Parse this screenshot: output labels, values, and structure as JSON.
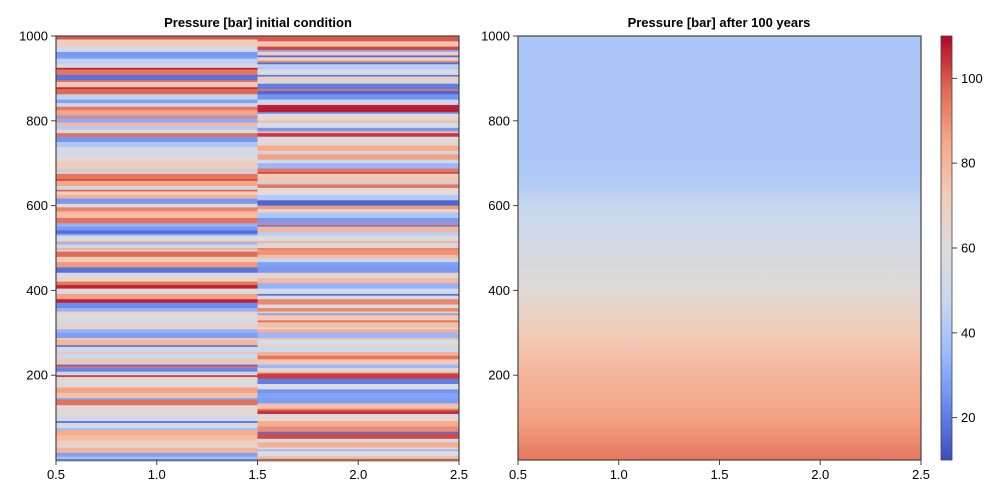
{
  "chart_data": [
    {
      "type": "heatmap",
      "title": "Pressure [bar] initial condition",
      "xlim": [
        0.5,
        2.5
      ],
      "ylim": [
        0,
        1000
      ],
      "x_ticks": [
        "0.5",
        "1.0",
        "1.5",
        "2.0",
        "2.5"
      ],
      "y_ticks": [
        "200",
        "400",
        "600",
        "800",
        "1000"
      ],
      "columns": [
        {
          "x_range": [
            0.5,
            1.5
          ],
          "pattern": "random horizontal layers, ~1–2 m thick"
        },
        {
          "x_range": [
            1.5,
            2.5
          ],
          "pattern": "random horizontal layers, ~1–2 m thick"
        }
      ],
      "value_range": [
        10,
        110
      ],
      "colormap": "coolwarm"
    },
    {
      "type": "heatmap",
      "title": "Pressure [bar] after 100 years",
      "xlim": [
        0.5,
        2.5
      ],
      "ylim": [
        0,
        1000
      ],
      "x_ticks": [
        "0.5",
        "1.0",
        "1.5",
        "2.0",
        "2.5"
      ],
      "y_ticks": [
        "200",
        "400",
        "600",
        "800",
        "1000"
      ],
      "vertical_profile": [
        {
          "depth": 0,
          "value": 95
        },
        {
          "depth": 100,
          "value": 86
        },
        {
          "depth": 200,
          "value": 80
        },
        {
          "depth": 300,
          "value": 72
        },
        {
          "depth": 400,
          "value": 62
        },
        {
          "depth": 500,
          "value": 55
        },
        {
          "depth": 600,
          "value": 47
        },
        {
          "depth": 650,
          "value": 42
        },
        {
          "depth": 700,
          "value": 40
        },
        {
          "depth": 1000,
          "value": 40
        }
      ],
      "colormap": "coolwarm"
    }
  ],
  "colorbar": {
    "range": [
      10,
      110
    ],
    "ticks": [
      "20",
      "40",
      "60",
      "80",
      "100"
    ],
    "colors": [
      "#3b4cc0",
      "#6788ee",
      "#9abbff",
      "#c9d8ef",
      "#dddcdc",
      "#f2cbb7",
      "#f7a889",
      "#e26952",
      "#b40426"
    ]
  }
}
